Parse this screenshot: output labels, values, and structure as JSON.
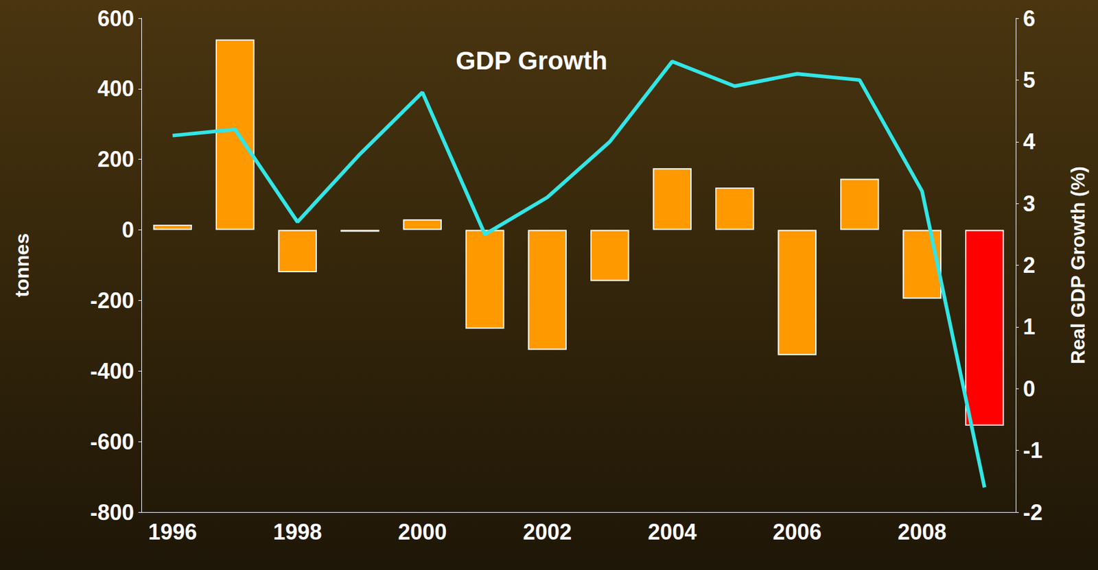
{
  "chart_data": {
    "type": "bar",
    "y_label": "tonnes",
    "y2_label": "Real GDP Growth (%)",
    "categories": [
      "1996",
      null,
      "1998",
      null,
      "2000",
      null,
      "2002",
      null,
      "2004",
      null,
      "2006",
      null,
      "2008",
      null
    ],
    "series": [
      {
        "type": "bar",
        "colors": [
          "#ff9900",
          "#ff9900",
          "#ff9900",
          "#ff9900",
          "#ff9900",
          "#ff9900",
          "#ff9900",
          "#ff9900",
          "#ff9900",
          "#ff9900",
          "#ff9900",
          "#ff9900",
          "#ff9900",
          "#ff0000"
        ],
        "values": [
          15,
          540,
          -120,
          -5,
          30,
          -280,
          -340,
          -145,
          175,
          120,
          -355,
          145,
          -195,
          -555
        ]
      },
      {
        "type": "line",
        "name": "GDP Growth",
        "color": "#33e5e5",
        "axis": "y2",
        "values": [
          4.1,
          4.2,
          2.7,
          3.8,
          4.8,
          2.5,
          3.1,
          4.0,
          5.3,
          4.9,
          5.1,
          5.0,
          3.2,
          -1.6
        ]
      }
    ],
    "ylim": [
      -800,
      600
    ],
    "yticks": [
      -800,
      -600,
      -400,
      -200,
      0,
      200,
      400,
      600
    ],
    "y2lim": [
      -2,
      6
    ],
    "y2ticks": [
      -2,
      -1,
      0,
      1,
      2,
      3,
      4,
      5,
      6
    ],
    "grid": false
  }
}
